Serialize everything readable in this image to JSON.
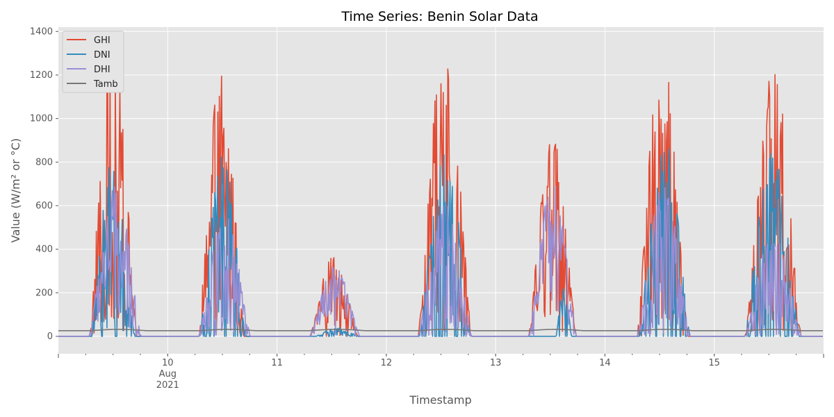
{
  "chart_data": {
    "type": "line",
    "title": "Time Series: Benin Solar Data",
    "xlabel": "Timestamp",
    "ylabel": "Value (W/m² or °C)",
    "xlim": [
      "2021-08-09",
      "2021-08-16"
    ],
    "ylim": [
      -80,
      1420
    ],
    "yticks": [
      0,
      200,
      400,
      600,
      800,
      1000,
      1200,
      1400
    ],
    "xticks": [
      {
        "x": "2021-08-10",
        "label": "10",
        "sublabel": "Aug\n2021"
      },
      {
        "x": "2021-08-11",
        "label": "11"
      },
      {
        "x": "2021-08-12",
        "label": "12"
      },
      {
        "x": "2021-08-13",
        "label": "13"
      },
      {
        "x": "2021-08-14",
        "label": "14"
      },
      {
        "x": "2021-08-15",
        "label": "15"
      }
    ],
    "grid": true,
    "legend_position": "top-left",
    "series": [
      {
        "name": "GHI",
        "color": "#E24A33",
        "days": [
          {
            "date": "2021-08-09",
            "peak": 1330,
            "dip": 150,
            "start": 0.28,
            "end": 0.72
          },
          {
            "date": "2021-08-10",
            "peak": 1225,
            "dip": 200,
            "start": 0.28,
            "end": 0.7
          },
          {
            "date": "2021-08-11",
            "peak": 370,
            "dip": 150,
            "start": 0.3,
            "end": 0.74
          },
          {
            "date": "2021-08-12",
            "peak": 1365,
            "dip": 150,
            "start": 0.29,
            "end": 0.78
          },
          {
            "date": "2021-08-13",
            "peak": 935,
            "dip": 300,
            "start": 0.3,
            "end": 0.74
          },
          {
            "date": "2021-08-14",
            "peak": 1310,
            "dip": 200,
            "start": 0.29,
            "end": 0.76
          },
          {
            "date": "2021-08-15",
            "peak": 1230,
            "dip": 250,
            "start": 0.28,
            "end": 0.8
          }
        ]
      },
      {
        "name": "DNI",
        "color": "#348ABD",
        "days": [
          {
            "date": "2021-08-09",
            "peak": 830,
            "dip": 0,
            "start": 0.3,
            "end": 0.7
          },
          {
            "date": "2021-08-10",
            "peak": 830,
            "dip": 0,
            "start": 0.29,
            "end": 0.72
          },
          {
            "date": "2021-08-11",
            "peak": 40,
            "dip": 0,
            "start": 0.35,
            "end": 0.75
          },
          {
            "date": "2021-08-12",
            "peak": 840,
            "dip": 0,
            "start": 0.3,
            "end": 0.78
          },
          {
            "date": "2021-08-13",
            "peak": 230,
            "dip": 0,
            "start": 0.55,
            "end": 0.7
          },
          {
            "date": "2021-08-14",
            "peak": 905,
            "dip": 0,
            "start": 0.31,
            "end": 0.78
          },
          {
            "date": "2021-08-15",
            "peak": 860,
            "dip": 0,
            "start": 0.28,
            "end": 0.78
          }
        ]
      },
      {
        "name": "DHI",
        "color": "#988ED5",
        "days": [
          {
            "date": "2021-08-09",
            "peak": 700,
            "dip": 200,
            "start": 0.28,
            "end": 0.76
          },
          {
            "date": "2021-08-10",
            "peak": 560,
            "dip": 100,
            "start": 0.28,
            "end": 0.76
          },
          {
            "date": "2021-08-11",
            "peak": 320,
            "dip": 120,
            "start": 0.3,
            "end": 0.76
          },
          {
            "date": "2021-08-12",
            "peak": 640,
            "dip": 80,
            "start": 0.29,
            "end": 0.78
          },
          {
            "date": "2021-08-13",
            "peak": 710,
            "dip": 300,
            "start": 0.3,
            "end": 0.74
          },
          {
            "date": "2021-08-14",
            "peak": 700,
            "dip": 120,
            "start": 0.29,
            "end": 0.78
          },
          {
            "date": "2021-08-15",
            "peak": 480,
            "dip": 100,
            "start": 0.28,
            "end": 0.8
          }
        ]
      },
      {
        "name": "Tamb",
        "color": "#777777",
        "baseline": 26,
        "day_high": 32
      }
    ]
  }
}
